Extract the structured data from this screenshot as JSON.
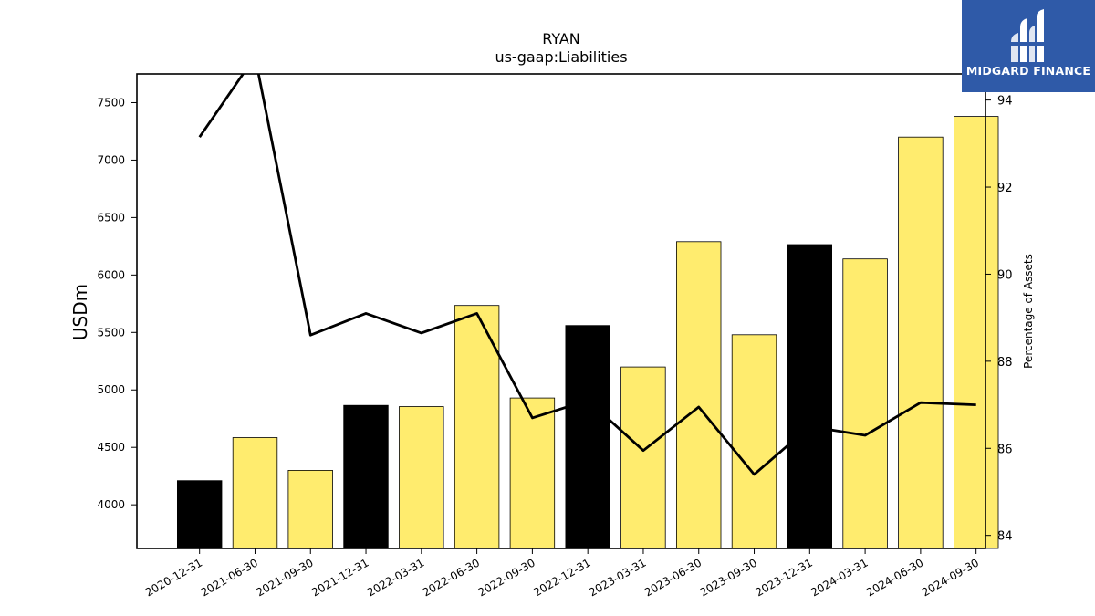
{
  "brand": {
    "name": "MIDGARD FINANCE",
    "bg_color": "#2f5aa8",
    "icon": "midgard-finance-logo-icon"
  },
  "chart_data": {
    "type": "bar",
    "title": "RYAN",
    "subtitle": "us-gaap:Liabilities",
    "ylabel": "USDm",
    "y2label": "Percentage of Assets",
    "categories": [
      "2020-12-31",
      "2021-06-30",
      "2021-09-30",
      "2021-12-31",
      "2022-03-31",
      "2022-06-30",
      "2022-09-30",
      "2022-12-31",
      "2023-03-31",
      "2023-06-30",
      "2023-09-30",
      "2023-12-31",
      "2024-03-31",
      "2024-06-30",
      "2024-09-30"
    ],
    "series": [
      {
        "values": [
          4210,
          4585,
          4300,
          4865,
          4855,
          5735,
          4930,
          5560,
          5200,
          6290,
          5480,
          6265,
          6140,
          7200,
          7380
        ],
        "colors": [
          "#000000",
          "#ffec6e",
          "#ffec6e",
          "#000000",
          "#ffec6e",
          "#ffec6e",
          "#ffec6e",
          "#000000",
          "#ffec6e",
          "#ffec6e",
          "#ffec6e",
          "#000000",
          "#ffec6e",
          "#ffec6e",
          "#ffec6e"
        ]
      },
      {
        "type": "line",
        "axis": "right",
        "color": "#000000",
        "values": [
          93.15,
          95.0,
          88.6,
          89.1,
          88.65,
          89.1,
          86.7,
          87.1,
          85.95,
          86.95,
          85.4,
          86.5,
          86.3,
          87.05,
          87.0
        ]
      }
    ],
    "ylim": [
      3620,
      7750
    ],
    "y2lim": [
      83.7,
      94.6
    ],
    "yticks": [
      4000,
      4500,
      5000,
      5500,
      6000,
      6500,
      7000,
      7500
    ],
    "y2ticks": [
      84,
      86,
      88,
      90,
      92,
      94
    ],
    "grid": false
  }
}
